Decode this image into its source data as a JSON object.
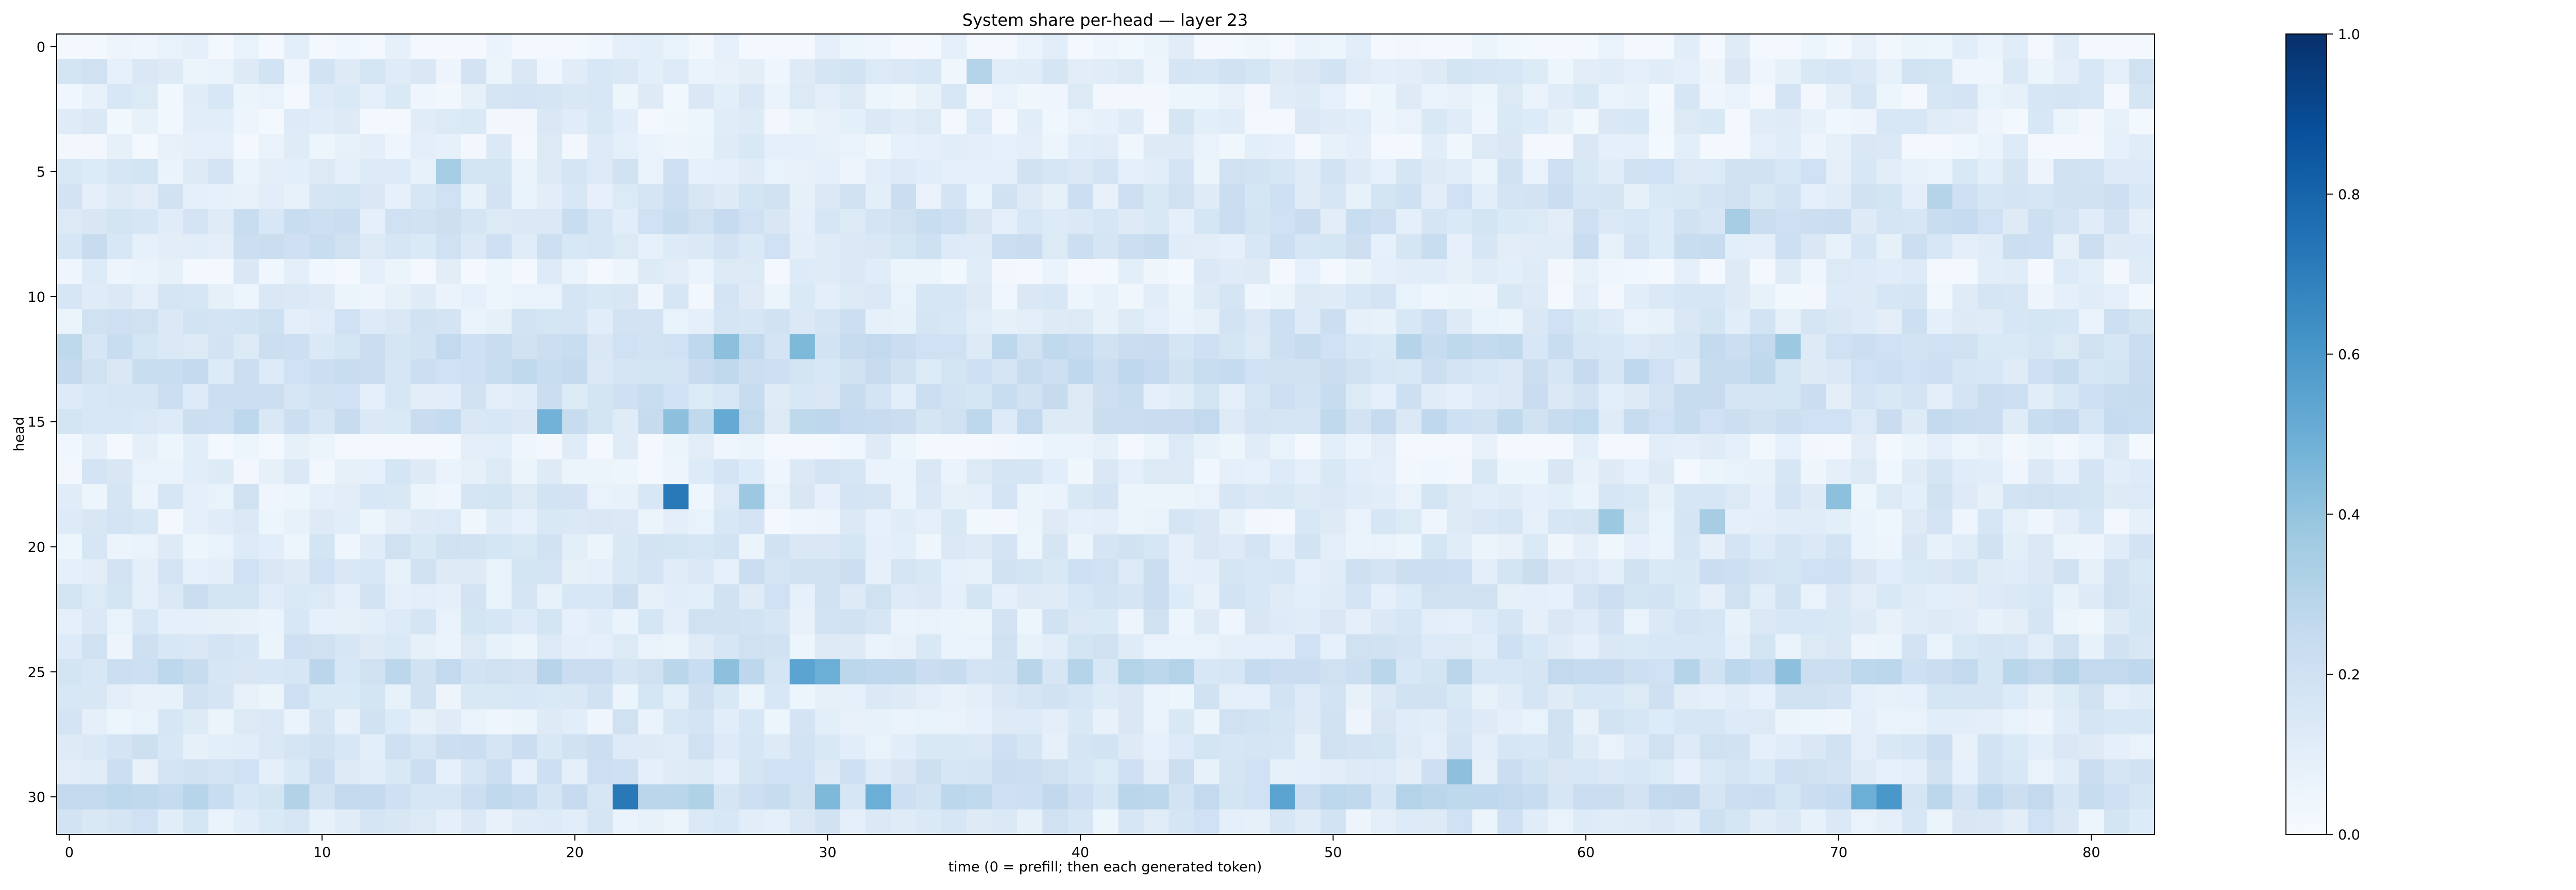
{
  "chart_data": {
    "type": "heatmap",
    "title": "System share per-head — layer 23",
    "xlabel": "time (0 = prefill; then each generated token)",
    "ylabel": "head",
    "x_count": 83,
    "y_count": 32,
    "xlim": [
      -0.5,
      82.5
    ],
    "ylim": [
      -0.5,
      31.5
    ],
    "y_inverted": true,
    "x_ticks": [
      0,
      10,
      20,
      30,
      40,
      50,
      60,
      70,
      80
    ],
    "y_ticks": [
      0,
      5,
      10,
      15,
      20,
      25,
      30
    ],
    "colorbar": {
      "min": 0.0,
      "max": 1.0,
      "ticks": [
        0.0,
        0.2,
        0.4,
        0.6,
        0.8,
        1.0
      ],
      "tick_labels": [
        "0.0",
        "0.2",
        "0.4",
        "0.6",
        "0.8",
        "1.0"
      ],
      "colormap": "Blues",
      "stops": [
        "#f7fbff",
        "#deebf7",
        "#c6dbef",
        "#9ecae1",
        "#6baed6",
        "#4292c6",
        "#2171b5",
        "#08519c",
        "#08306b"
      ]
    },
    "grid": false,
    "legend": "colorbar right",
    "row_base_values": [
      0.04,
      0.12,
      0.1,
      0.09,
      0.08,
      0.13,
      0.15,
      0.17,
      0.16,
      0.07,
      0.1,
      0.14,
      0.2,
      0.2,
      0.17,
      0.2,
      0.06,
      0.1,
      0.12,
      0.1,
      0.12,
      0.15,
      0.15,
      0.12,
      0.13,
      0.23,
      0.13,
      0.12,
      0.15,
      0.15,
      0.24,
      0.13
    ],
    "values_variation_seed": 23,
    "values_variation_amplitude": 0.08,
    "highlights": [
      {
        "x": 24,
        "y": 18,
        "value": 0.72
      },
      {
        "x": 22,
        "y": 30,
        "value": 0.72
      },
      {
        "x": 72,
        "y": 30,
        "value": 0.6
      },
      {
        "x": 48,
        "y": 30,
        "value": 0.55
      },
      {
        "x": 26,
        "y": 15,
        "value": 0.52
      },
      {
        "x": 19,
        "y": 15,
        "value": 0.48
      },
      {
        "x": 26,
        "y": 12,
        "value": 0.42
      },
      {
        "x": 29,
        "y": 12,
        "value": 0.45
      },
      {
        "x": 29,
        "y": 25,
        "value": 0.55
      },
      {
        "x": 30,
        "y": 25,
        "value": 0.5
      },
      {
        "x": 71,
        "y": 30,
        "value": 0.5
      },
      {
        "x": 32,
        "y": 30,
        "value": 0.5
      },
      {
        "x": 30,
        "y": 30,
        "value": 0.45
      },
      {
        "x": 55,
        "y": 29,
        "value": 0.42
      },
      {
        "x": 70,
        "y": 18,
        "value": 0.42
      },
      {
        "x": 15,
        "y": 5,
        "value": 0.35
      },
      {
        "x": 36,
        "y": 1,
        "value": 0.3
      },
      {
        "x": 66,
        "y": 7,
        "value": 0.35
      },
      {
        "x": 74,
        "y": 6,
        "value": 0.3
      },
      {
        "x": 68,
        "y": 25,
        "value": 0.42
      },
      {
        "x": 26,
        "y": 25,
        "value": 0.42
      },
      {
        "x": 61,
        "y": 19,
        "value": 0.38
      },
      {
        "x": 65,
        "y": 19,
        "value": 0.35
      },
      {
        "x": 24,
        "y": 15,
        "value": 0.42
      },
      {
        "x": 27,
        "y": 18,
        "value": 0.38
      },
      {
        "x": 68,
        "y": 12,
        "value": 0.38
      },
      {
        "x": 53,
        "y": 12,
        "value": 0.3
      }
    ]
  }
}
